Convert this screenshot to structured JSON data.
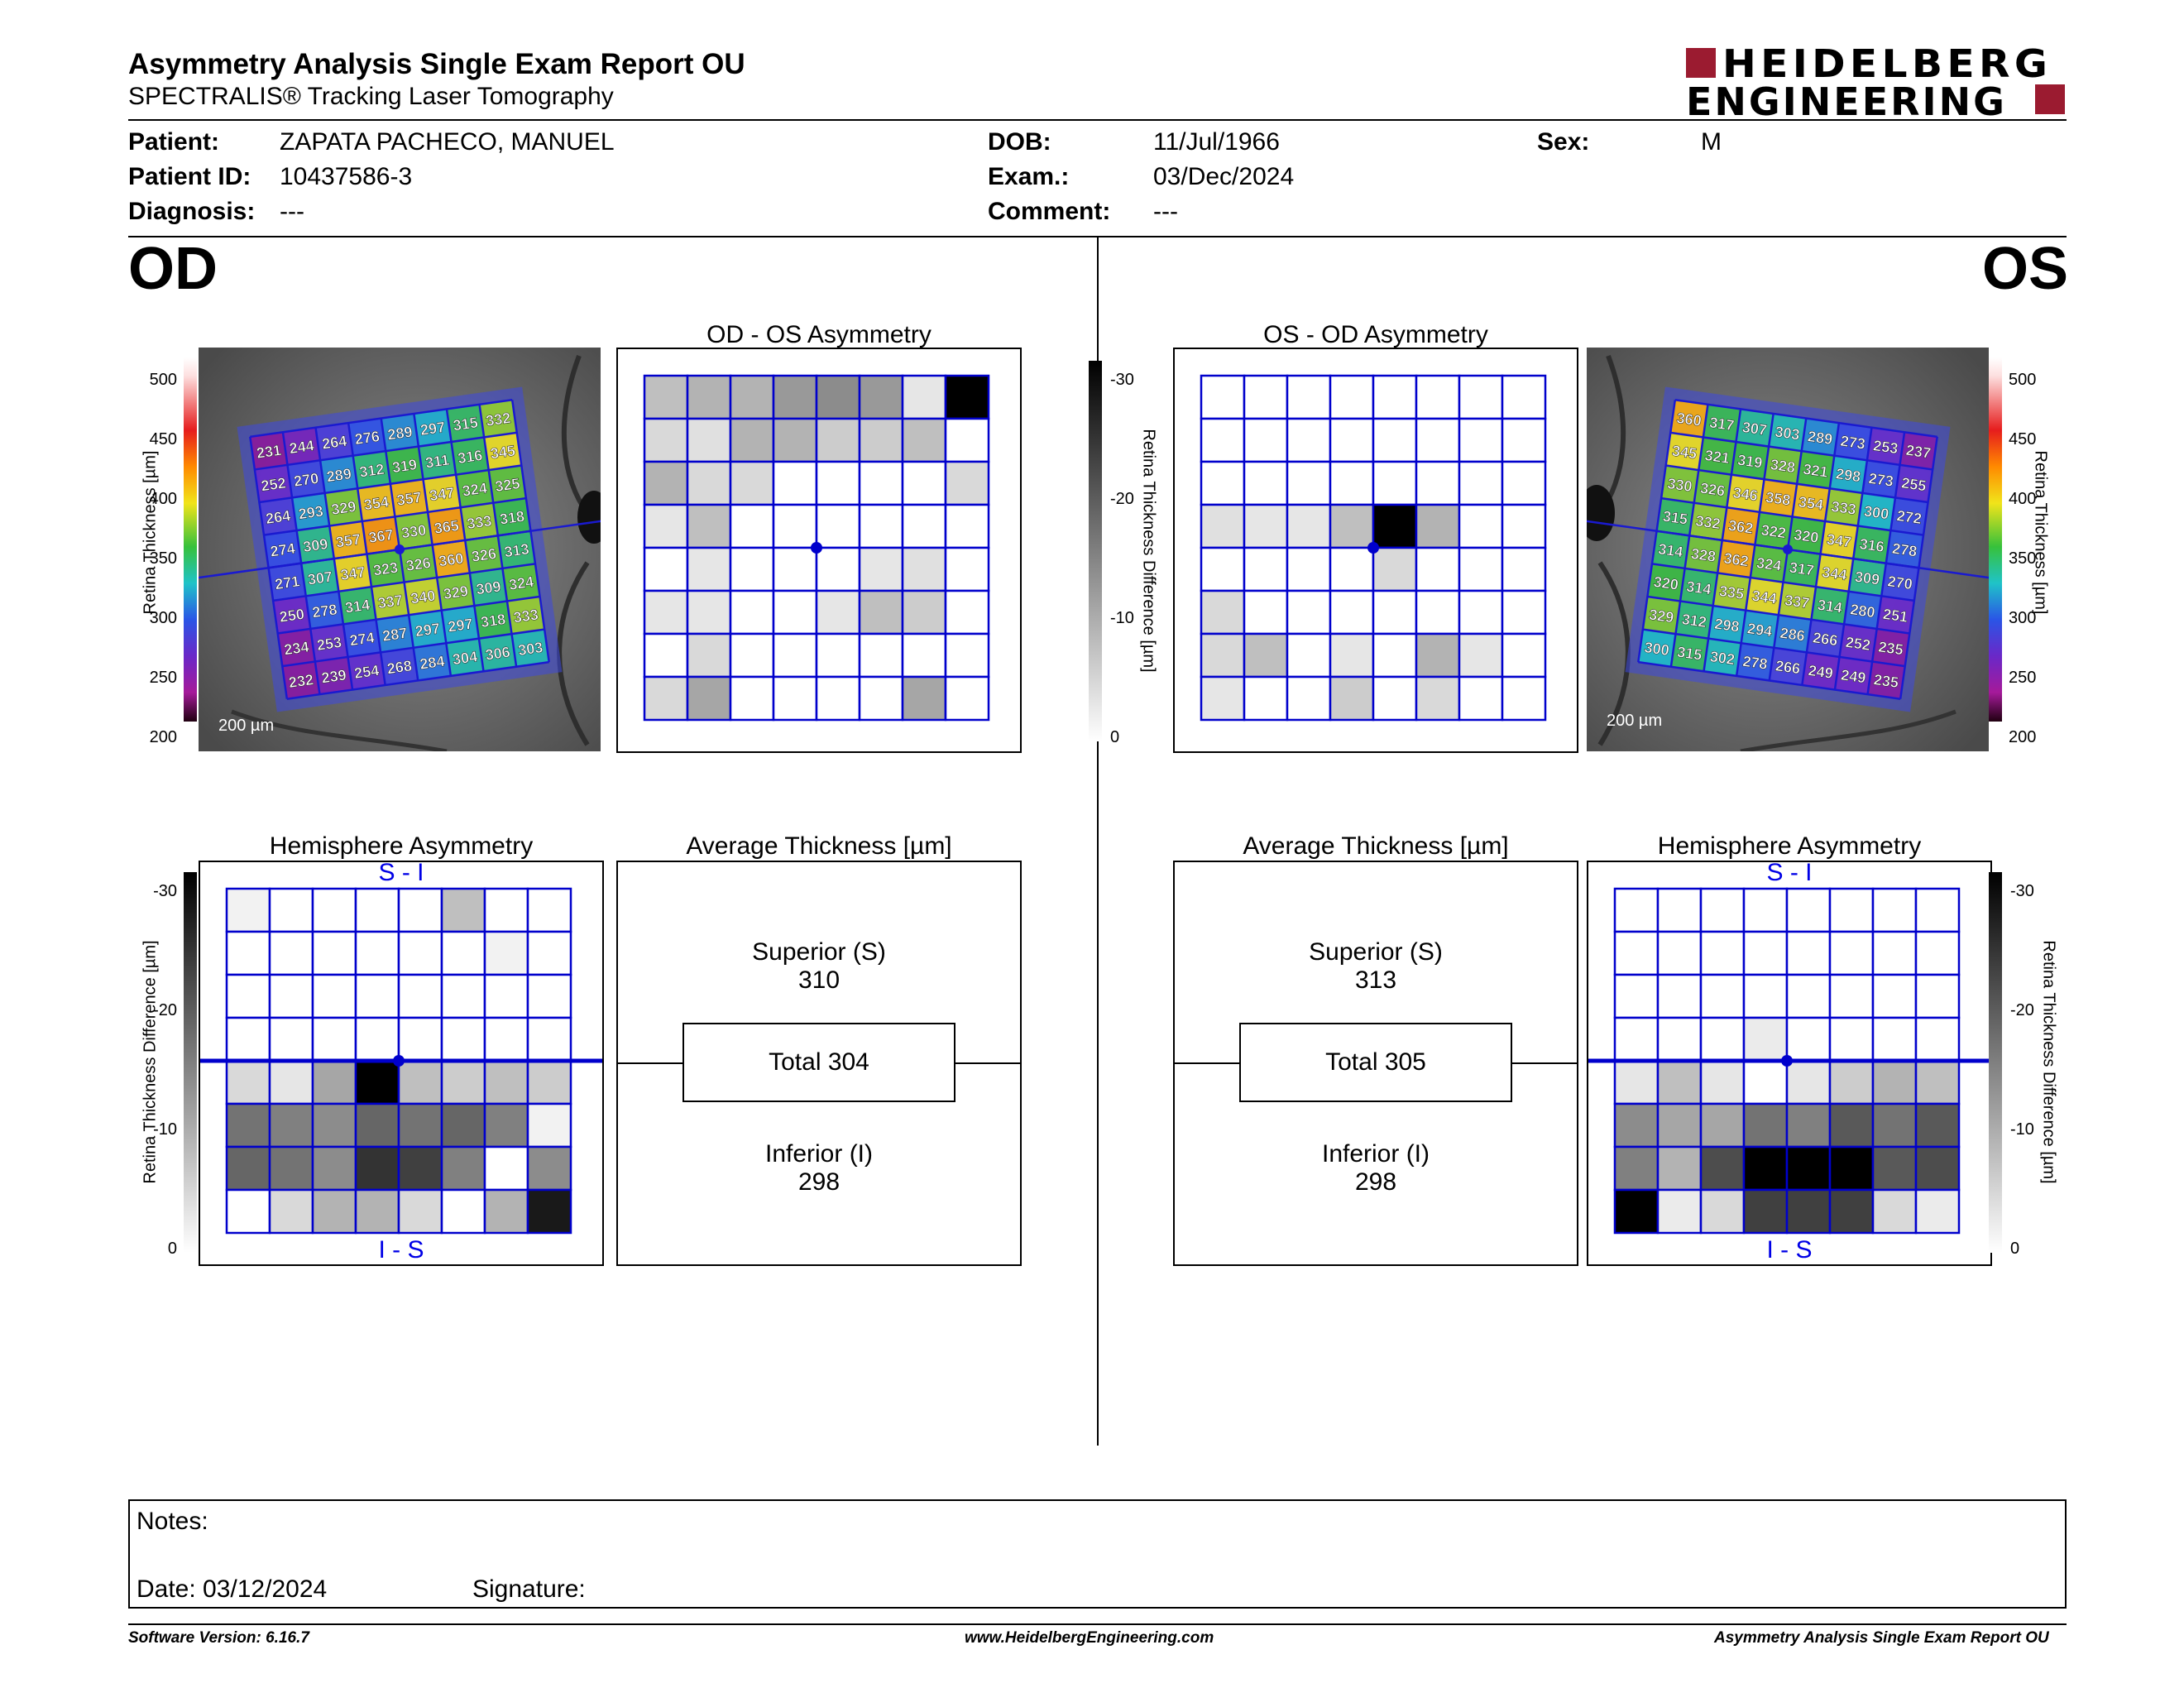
{
  "header": {
    "title": "Asymmetry Analysis Single Exam Report OU",
    "subtitle": "SPECTRALIS® Tracking Laser Tomography",
    "logo_line1": "HEIDELBERG",
    "logo_line2": "ENGINEERING",
    "brand_color": "#9b1b30"
  },
  "patient": {
    "patient_label": "Patient:",
    "patient_value": "ZAPATA PACHECO, MANUEL",
    "id_label": "Patient ID:",
    "id_value": "10437586-3",
    "diagnosis_label": "Diagnosis:",
    "diagnosis_value": "---",
    "dob_label": "DOB:",
    "dob_value": "11/Jul/1966",
    "exam_label": "Exam.:",
    "exam_value": "03/Dec/2024",
    "comment_label": "Comment:",
    "comment_value": "---",
    "sex_label": "Sex:",
    "sex_value": "M"
  },
  "od": {
    "eye_label": "OD",
    "asym_title": "OD - OS Asymmetry",
    "hemi_title": "Hemisphere Asymmetry",
    "hemi_top": "S - I",
    "hemi_bottom": "I - S",
    "avg_title": "Average Thickness [µm]",
    "superior_label": "Superior (S)",
    "superior_value": "310",
    "total_label": "Total 304",
    "inferior_label": "Inferior (I)",
    "inferior_value": "298",
    "scale_label": "200 µm",
    "thickness_grid": [
      [
        231,
        244,
        264,
        276,
        289,
        297,
        315,
        332
      ],
      [
        252,
        270,
        289,
        312,
        319,
        311,
        316,
        345
      ],
      [
        264,
        293,
        329,
        354,
        357,
        347,
        324,
        325
      ],
      [
        274,
        309,
        357,
        367,
        330,
        365,
        333,
        318
      ],
      [
        271,
        307,
        347,
        323,
        326,
        360,
        326,
        313
      ],
      [
        250,
        278,
        314,
        337,
        340,
        329,
        309,
        324
      ],
      [
        234,
        253,
        274,
        287,
        297,
        297,
        318,
        333
      ],
      [
        232,
        239,
        254,
        268,
        284,
        304,
        306,
        303
      ]
    ],
    "asym_grid": [
      [
        0.25,
        0.3,
        0.3,
        0.4,
        0.45,
        0.4,
        0.1,
        1.0
      ],
      [
        0.15,
        0.12,
        0.3,
        0.3,
        0.2,
        0.2,
        0.25,
        0
      ],
      [
        0.3,
        0.15,
        0.15,
        0,
        0,
        0,
        0,
        0.15
      ],
      [
        0.1,
        0.25,
        0,
        0,
        0,
        0,
        0,
        0
      ],
      [
        0,
        0.1,
        0,
        0,
        0,
        0.1,
        0.12,
        0
      ],
      [
        0.1,
        0.1,
        0,
        0,
        0.1,
        0.25,
        0.2,
        0
      ],
      [
        0,
        0.15,
        0,
        0,
        0,
        0,
        0,
        0
      ],
      [
        0.15,
        0.35,
        0,
        0,
        0,
        0,
        0.35,
        0
      ]
    ],
    "hemi_grid": [
      [
        0.05,
        0,
        0,
        0,
        0,
        0.25,
        0,
        0
      ],
      [
        0,
        0,
        0,
        0,
        0,
        0,
        0.05,
        0
      ],
      [
        0,
        0,
        0,
        0,
        0,
        0,
        0,
        0
      ],
      [
        0,
        0,
        0,
        0,
        0,
        0,
        0,
        0
      ],
      [
        0.15,
        0.1,
        0.35,
        1.0,
        0.25,
        0.2,
        0.25,
        0.2
      ],
      [
        0.55,
        0.5,
        0.45,
        0.6,
        0.55,
        0.6,
        0.5,
        0.05
      ],
      [
        0.6,
        0.55,
        0.45,
        0.8,
        0.75,
        0.5,
        0,
        0.45
      ],
      [
        0,
        0.15,
        0.3,
        0.3,
        0.15,
        0,
        0.3,
        0.9
      ]
    ]
  },
  "os": {
    "eye_label": "OS",
    "asym_title": "OS - OD Asymmetry",
    "hemi_title": "Hemisphere Asymmetry",
    "hemi_top": "S - I",
    "hemi_bottom": "I - S",
    "avg_title": "Average Thickness [µm]",
    "superior_label": "Superior (S)",
    "superior_value": "313",
    "total_label": "Total 305",
    "inferior_label": "Inferior (I)",
    "inferior_value": "298",
    "scale_label": "200 µm",
    "thickness_grid": [
      [
        360,
        317,
        307,
        303,
        289,
        273,
        253,
        237
      ],
      [
        345,
        321,
        319,
        328,
        321,
        298,
        273,
        255
      ],
      [
        330,
        326,
        346,
        358,
        354,
        333,
        300,
        272
      ],
      [
        315,
        332,
        362,
        322,
        320,
        347,
        316,
        278
      ],
      [
        314,
        328,
        362,
        324,
        317,
        344,
        309,
        270
      ],
      [
        320,
        314,
        335,
        344,
        337,
        314,
        280,
        251
      ],
      [
        329,
        312,
        298,
        294,
        286,
        266,
        252,
        235
      ],
      [
        300,
        315,
        302,
        278,
        266,
        249,
        249,
        235
      ]
    ],
    "asym_grid": [
      [
        0,
        0,
        0,
        0,
        0,
        0,
        0,
        0
      ],
      [
        0,
        0,
        0,
        0,
        0,
        0,
        0,
        0
      ],
      [
        0,
        0,
        0,
        0,
        0,
        0,
        0,
        0
      ],
      [
        0.12,
        0.1,
        0.1,
        0.25,
        1.0,
        0.3,
        0,
        0
      ],
      [
        0,
        0,
        0,
        0,
        0.15,
        0,
        0,
        0
      ],
      [
        0.15,
        0,
        0,
        0,
        0,
        0,
        0,
        0
      ],
      [
        0.15,
        0.25,
        0,
        0.1,
        0,
        0.3,
        0.1,
        0
      ],
      [
        0.1,
        0,
        0,
        0.2,
        0,
        0.15,
        0,
        0
      ]
    ],
    "hemi_grid": [
      [
        0,
        0,
        0,
        0,
        0,
        0,
        0,
        0
      ],
      [
        0,
        0,
        0,
        0,
        0,
        0,
        0,
        0
      ],
      [
        0,
        0,
        0,
        0,
        0,
        0,
        0,
        0
      ],
      [
        0,
        0,
        0,
        0.08,
        0,
        0,
        0,
        0
      ],
      [
        0.1,
        0.25,
        0.1,
        0,
        0.1,
        0.2,
        0.3,
        0.25
      ],
      [
        0.45,
        0.35,
        0.35,
        0.55,
        0.5,
        0.65,
        0.55,
        0.65
      ],
      [
        0.5,
        0.3,
        0.7,
        1.0,
        1.0,
        1.0,
        0.65,
        0.7
      ],
      [
        1.0,
        0.08,
        0.15,
        0.75,
        0.75,
        0.75,
        0.15,
        0.08
      ]
    ]
  },
  "scales": {
    "thickness_axis_label": "Retina Thickness [µm]",
    "thickness_ticks": [
      "500",
      "450",
      "400",
      "350",
      "300",
      "250",
      "200"
    ],
    "diff_axis_label": "Retina Thickness Difference [µm]",
    "diff_ticks": [
      "-30",
      "-20",
      "-10",
      "0"
    ]
  },
  "notes": {
    "notes_label": "Notes:",
    "date_label": "Date: 03/12/2024",
    "signature_label": "Signature:"
  },
  "footer": {
    "software": "Software Version: 6.16.7",
    "website": "www.HeidelbergEngineering.com",
    "report": "Asymmetry Analysis Single Exam Report OU"
  }
}
